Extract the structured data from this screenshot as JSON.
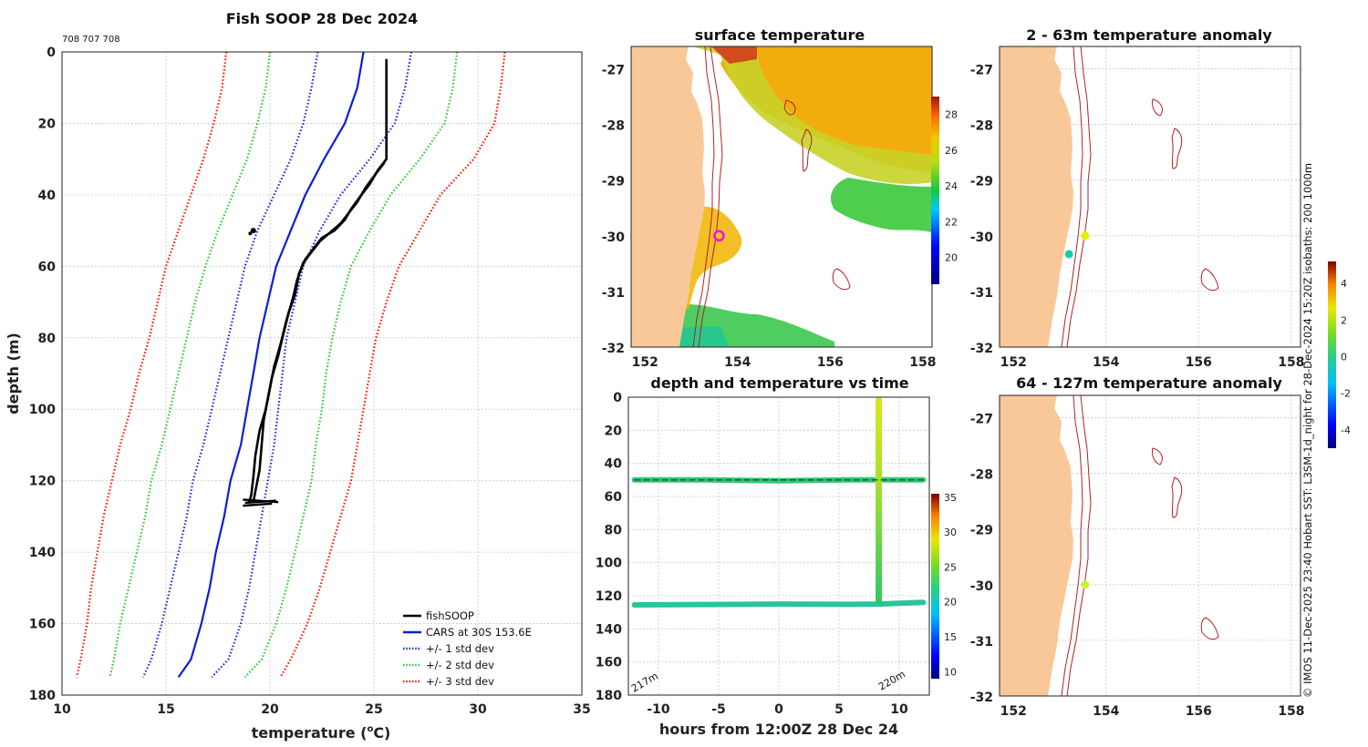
{
  "colors": {
    "land": "#f9c899",
    "isobath": "#b22222",
    "fish": "#000000",
    "cars": "#0a1fd6",
    "std1": "#1f2fd6",
    "std2": "#2ecc2e",
    "std3": "#ff1a00",
    "marker_ring": "#ff00ff",
    "marker_inner": "#ffd400",
    "anom_dot_yellow": "#e6f000",
    "anom_dot_teal": "#22c9a8",
    "anom_dot_lime": "#c8f03c"
  },
  "chart_data": [
    {
      "id": "profile",
      "type": "line",
      "title": "Fish SOOP 28 Dec 2024",
      "subtitle": "708 707 708",
      "xlabel": "temperature (",
      "xlabel_sup": "o",
      "xlabel_end": "C)",
      "ylabel": "depth (m)",
      "xlim": [
        10,
        35
      ],
      "ylim": [
        180,
        0
      ],
      "xticks": [
        10,
        15,
        20,
        25,
        30,
        35
      ],
      "yticks": [
        0,
        20,
        40,
        60,
        80,
        100,
        120,
        140,
        160,
        180
      ],
      "grid": true,
      "legend_position": "bottom-right",
      "legend": [
        "fishSOOP",
        "CARS at 30S 153.6E",
        "+/- 1 std dev",
        "+/- 2 std dev",
        "+/- 3 std dev"
      ],
      "series": [
        {
          "name": "CARS at 30S 153.6E",
          "style": "solid",
          "color_key": "cars",
          "points": [
            [
              24.5,
              0
            ],
            [
              24.2,
              10
            ],
            [
              23.6,
              20
            ],
            [
              22.6,
              30
            ],
            [
              21.7,
              40
            ],
            [
              21.0,
              50
            ],
            [
              20.3,
              60
            ],
            [
              19.9,
              70
            ],
            [
              19.5,
              80
            ],
            [
              19.2,
              90
            ],
            [
              18.9,
              100
            ],
            [
              18.6,
              110
            ],
            [
              18.1,
              120
            ],
            [
              17.8,
              130
            ],
            [
              17.4,
              140
            ],
            [
              17.1,
              150
            ],
            [
              16.7,
              160
            ],
            [
              16.2,
              170
            ],
            [
              15.6,
              175
            ]
          ]
        },
        {
          "name": "+/- 1 std dev",
          "style": "dotted",
          "color_key": "std1",
          "points": [
            [
              22.3,
              0
            ],
            [
              22.0,
              10
            ],
            [
              21.6,
              20
            ],
            [
              21.0,
              30
            ],
            [
              20.2,
              40
            ],
            [
              19.4,
              50
            ],
            [
              18.8,
              60
            ],
            [
              18.4,
              70
            ],
            [
              18.0,
              80
            ],
            [
              17.6,
              90
            ],
            [
              17.2,
              100
            ],
            [
              16.8,
              110
            ],
            [
              16.3,
              120
            ],
            [
              16.0,
              130
            ],
            [
              15.6,
              140
            ],
            [
              15.2,
              150
            ],
            [
              14.8,
              160
            ],
            [
              14.3,
              170
            ],
            [
              13.9,
              175
            ]
          ]
        },
        {
          "name": "+/- 1 std dev upper",
          "style": "dotted",
          "color_key": "std1",
          "points": [
            [
              26.8,
              0
            ],
            [
              26.5,
              10
            ],
            [
              26.0,
              20
            ],
            [
              24.8,
              30
            ],
            [
              23.4,
              40
            ],
            [
              22.4,
              50
            ],
            [
              21.6,
              60
            ],
            [
              21.2,
              70
            ],
            [
              20.8,
              80
            ],
            [
              20.6,
              90
            ],
            [
              20.4,
              100
            ],
            [
              20.2,
              110
            ],
            [
              19.9,
              120
            ],
            [
              19.6,
              130
            ],
            [
              19.3,
              140
            ],
            [
              19.0,
              150
            ],
            [
              18.6,
              160
            ],
            [
              18.0,
              170
            ],
            [
              17.2,
              175
            ]
          ]
        },
        {
          "name": "+/- 2 std dev",
          "style": "dotted",
          "color_key": "std2",
          "points": [
            [
              20.0,
              0
            ],
            [
              19.8,
              10
            ],
            [
              19.4,
              20
            ],
            [
              18.9,
              30
            ],
            [
              18.2,
              40
            ],
            [
              17.5,
              50
            ],
            [
              16.9,
              60
            ],
            [
              16.4,
              70
            ],
            [
              16.0,
              80
            ],
            [
              15.6,
              90
            ],
            [
              15.2,
              100
            ],
            [
              14.8,
              110
            ],
            [
              14.3,
              120
            ],
            [
              14.0,
              130
            ],
            [
              13.6,
              140
            ],
            [
              13.2,
              150
            ],
            [
              12.8,
              160
            ],
            [
              12.5,
              170
            ],
            [
              12.3,
              175
            ]
          ]
        },
        {
          "name": "+/- 2 std dev upper",
          "style": "dotted",
          "color_key": "std2",
          "points": [
            [
              29.0,
              0
            ],
            [
              28.8,
              10
            ],
            [
              28.4,
              20
            ],
            [
              27.2,
              30
            ],
            [
              25.8,
              40
            ],
            [
              24.8,
              50
            ],
            [
              23.9,
              60
            ],
            [
              23.4,
              70
            ],
            [
              23.0,
              80
            ],
            [
              22.7,
              90
            ],
            [
              22.5,
              100
            ],
            [
              22.2,
              110
            ],
            [
              22.0,
              120
            ],
            [
              21.6,
              130
            ],
            [
              21.2,
              140
            ],
            [
              20.8,
              150
            ],
            [
              20.3,
              160
            ],
            [
              19.6,
              170
            ],
            [
              18.8,
              175
            ]
          ]
        },
        {
          "name": "+/- 3 std dev",
          "style": "dotted",
          "color_key": "std3",
          "points": [
            [
              17.9,
              0
            ],
            [
              17.7,
              10
            ],
            [
              17.3,
              20
            ],
            [
              16.8,
              30
            ],
            [
              16.2,
              40
            ],
            [
              15.6,
              50
            ],
            [
              15.0,
              60
            ],
            [
              14.6,
              70
            ],
            [
              14.2,
              80
            ],
            [
              13.7,
              90
            ],
            [
              13.3,
              100
            ],
            [
              12.8,
              110
            ],
            [
              12.4,
              120
            ],
            [
              12.0,
              130
            ],
            [
              11.7,
              140
            ],
            [
              11.4,
              150
            ],
            [
              11.2,
              160
            ],
            [
              10.9,
              170
            ],
            [
              10.7,
              175
            ]
          ]
        },
        {
          "name": "+/- 3 std dev upper",
          "style": "dotted",
          "color_key": "std3",
          "points": [
            [
              31.3,
              0
            ],
            [
              31.1,
              10
            ],
            [
              30.8,
              20
            ],
            [
              29.8,
              30
            ],
            [
              28.2,
              40
            ],
            [
              27.2,
              50
            ],
            [
              26.2,
              60
            ],
            [
              25.6,
              70
            ],
            [
              25.1,
              80
            ],
            [
              24.8,
              90
            ],
            [
              24.5,
              100
            ],
            [
              24.2,
              110
            ],
            [
              23.9,
              120
            ],
            [
              23.4,
              130
            ],
            [
              22.9,
              140
            ],
            [
              22.4,
              150
            ],
            [
              21.8,
              160
            ],
            [
              21.0,
              170
            ],
            [
              20.5,
              175
            ]
          ]
        },
        {
          "name": "fishSOOP",
          "style": "solid",
          "color_key": "fish",
          "points": [
            [
              25.6,
              2
            ],
            [
              25.6,
              10
            ],
            [
              25.6,
              20
            ],
            [
              25.6,
              30
            ],
            [
              25.2,
              33
            ],
            [
              24.8,
              37
            ],
            [
              24.4,
              40
            ],
            [
              23.9,
              44
            ],
            [
              23.6,
              47
            ],
            [
              23.1,
              50
            ],
            [
              22.5,
              52
            ],
            [
              22.1,
              55
            ],
            [
              21.7,
              58
            ],
            [
              21.4,
              62
            ],
            [
              21.2,
              68
            ],
            [
              20.9,
              73
            ],
            [
              20.6,
              80
            ],
            [
              20.4,
              85
            ],
            [
              20.1,
              91
            ],
            [
              19.9,
              97
            ],
            [
              19.7,
              103
            ],
            [
              19.6,
              110
            ],
            [
              19.5,
              117
            ],
            [
              19.3,
              123
            ],
            [
              19.2,
              126
            ]
          ]
        },
        {
          "name": "fishSOOP return",
          "style": "solid",
          "color_key": "fish",
          "points": [
            [
              25.5,
              31
            ],
            [
              25.1,
              34
            ],
            [
              24.6,
              38
            ],
            [
              24.2,
              42
            ],
            [
              23.8,
              45
            ],
            [
              23.4,
              48
            ],
            [
              22.8,
              51
            ],
            [
              22.4,
              53
            ],
            [
              22.0,
              56
            ],
            [
              21.6,
              59
            ],
            [
              21.3,
              64
            ],
            [
              21.1,
              69
            ],
            [
              20.8,
              75
            ],
            [
              20.5,
              82
            ],
            [
              20.2,
              88
            ],
            [
              20.0,
              94
            ],
            [
              19.8,
              100
            ],
            [
              19.5,
              106
            ],
            [
              19.3,
              113
            ],
            [
              19.2,
              119
            ],
            [
              19.1,
              124
            ],
            [
              19.0,
              126
            ]
          ]
        }
      ]
    },
    {
      "id": "sst_map",
      "type": "heatmap",
      "title": "surface temperature",
      "xticks": [
        152,
        154,
        156,
        158
      ],
      "yticks": [
        -27,
        -28,
        -29,
        -30,
        -31,
        -32
      ],
      "colorbar_ticks": [
        20,
        22,
        24,
        26,
        28
      ],
      "marker": {
        "lon": 153.6,
        "lat": -30.0
      }
    },
    {
      "id": "anom_2_63",
      "type": "scatter",
      "title": "2 - 63m temperature anomaly",
      "xticks": [
        152,
        154,
        156,
        158
      ],
      "yticks": [
        -27,
        -28,
        -29,
        -30,
        -31,
        -32
      ],
      "points": [
        {
          "lon": 153.55,
          "lat": -30.0,
          "color_key": "anom_dot_yellow"
        },
        {
          "lon": 153.2,
          "lat": -30.33,
          "color_key": "anom_dot_teal"
        }
      ]
    },
    {
      "id": "anom_64_127",
      "type": "scatter",
      "title": "64 - 127m temperature anomaly",
      "xticks": [
        152,
        154,
        156,
        158
      ],
      "yticks": [
        -27,
        -28,
        -29,
        -30,
        -31,
        -32
      ],
      "points": [
        {
          "lon": 153.55,
          "lat": -30.0,
          "color_key": "anom_dot_lime"
        }
      ]
    },
    {
      "id": "depth_time",
      "type": "line",
      "title": "depth and temperature vs time",
      "xlabel": "hours from 12:00Z 28 Dec 24",
      "xlim": [
        -12.5,
        12.5
      ],
      "ylim": [
        180,
        0
      ],
      "xticks": [
        -10,
        -5,
        0,
        5,
        10
      ],
      "yticks": [
        0,
        20,
        40,
        60,
        80,
        100,
        120,
        140,
        160,
        180
      ],
      "colorbar_ticks": [
        10,
        15,
        20,
        25,
        30,
        35
      ],
      "annotation_left": "217m",
      "annotation_right": "220m",
      "series": [
        {
          "name": "trace 50m",
          "points": [
            [
              -12,
              50
            ],
            [
              -6,
              50
            ],
            [
              0,
              50.5
            ],
            [
              6,
              50
            ],
            [
              12,
              50
            ]
          ]
        },
        {
          "name": "trace 125m",
          "points": [
            [
              -12,
              125.5
            ],
            [
              -6,
              125.3
            ],
            [
              0,
              125
            ],
            [
              6,
              125.2
            ],
            [
              8.2,
              125
            ],
            [
              12,
              124
            ]
          ]
        },
        {
          "name": "profile cast",
          "points": [
            [
              8.3,
              0
            ],
            [
              8.3,
              125
            ]
          ]
        }
      ]
    },
    {
      "id": "anom_colorbar",
      "type": "heatmap",
      "colorbar_ticks": [
        4,
        2,
        0,
        -2,
        -4
      ]
    }
  ],
  "footer_text": "© IMOS 11-Dec-2025 23:40 Hobart SST: L3SM-1d_night for 28-Dec-2024 15:20Z isobaths: 200  1000m"
}
